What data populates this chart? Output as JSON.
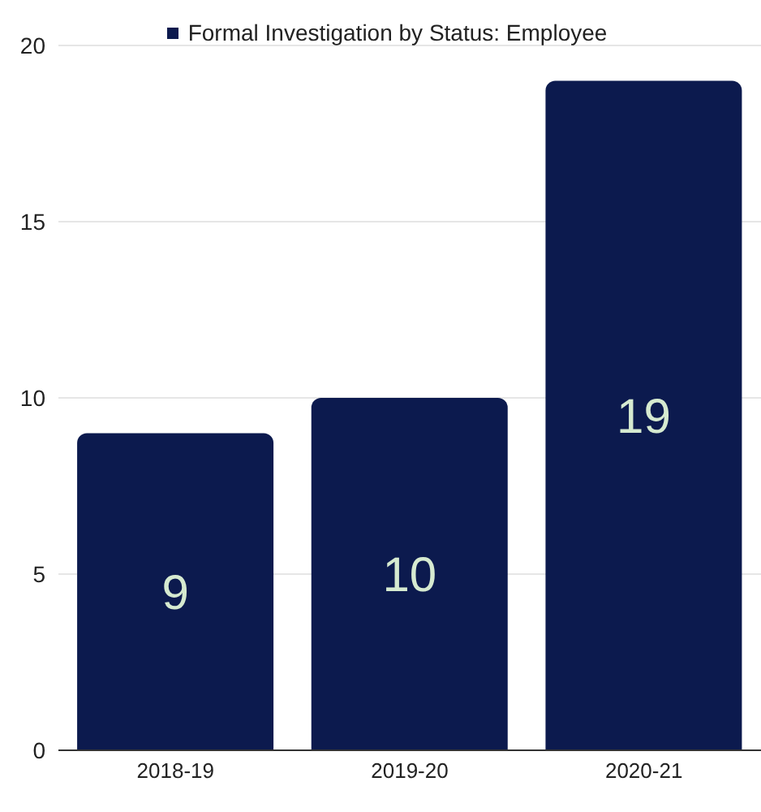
{
  "chart_data": {
    "type": "bar",
    "categories": [
      "2018-19",
      "2019-20",
      "2020-21"
    ],
    "series": [
      {
        "name": "Formal Investigation by Status: Employee",
        "color": "#0c1a4e",
        "values": [
          9,
          10,
          19
        ]
      }
    ],
    "ylim": [
      0,
      20
    ],
    "yticks": [
      0,
      5,
      10,
      15,
      20
    ],
    "grid": "y",
    "legend": "top",
    "data_labels": true
  }
}
